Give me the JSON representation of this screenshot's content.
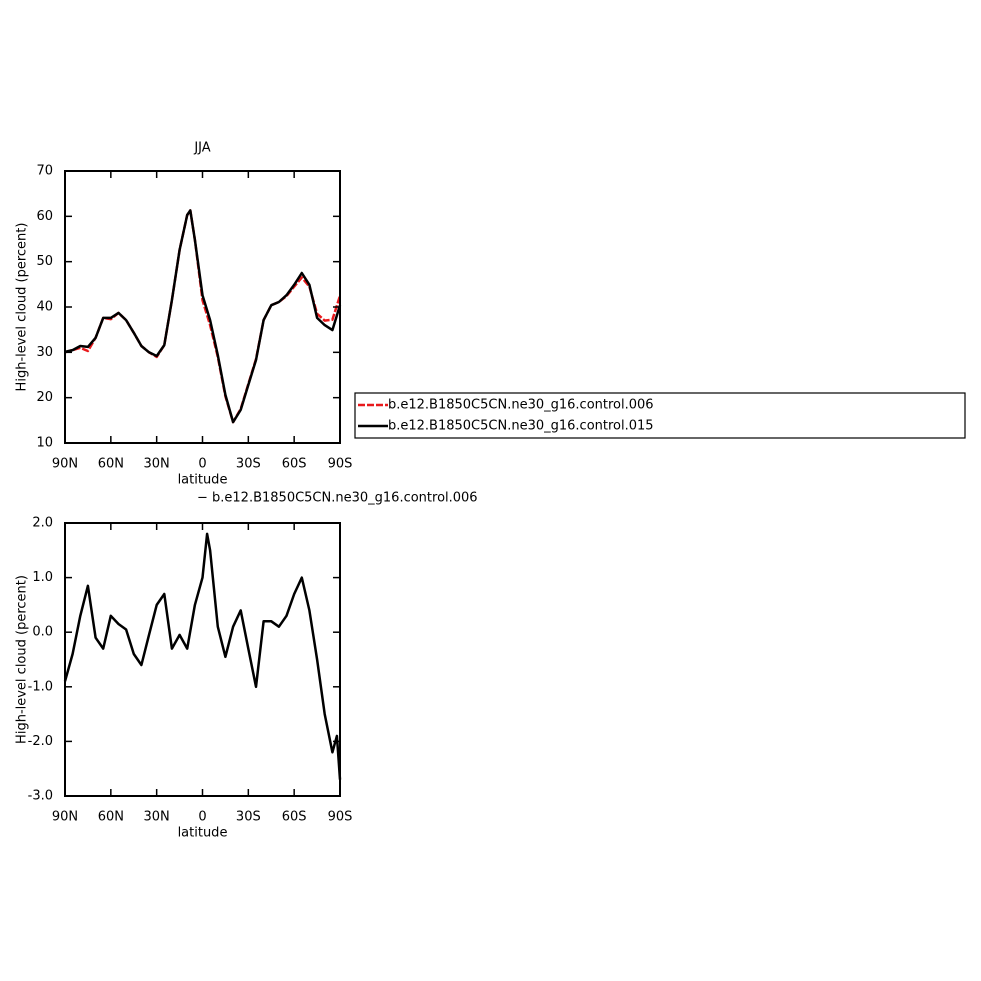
{
  "chart_data": [
    {
      "type": "line",
      "title": "JJA",
      "xlabel": "latitude",
      "ylabel": "High-level cloud  (percent)",
      "x": [
        90,
        85,
        80,
        75,
        70,
        65,
        60,
        55,
        50,
        45,
        40,
        35,
        30,
        25,
        20,
        15,
        10,
        8,
        5,
        0,
        -5,
        -10,
        -15,
        -20,
        -25,
        -30,
        -35,
        -40,
        -45,
        -50,
        -55,
        -60,
        -65,
        -70,
        -75,
        -80,
        -85,
        -90
      ],
      "series": [
        {
          "name": "b.e12.B1850C5CN.ne30_g16.control.006",
          "color": "#e8191c",
          "values": [
            30.0,
            30.5,
            31.0,
            30.3,
            33.2,
            37.6,
            37.3,
            38.7,
            37.1,
            34.3,
            31.4,
            30.0,
            29.0,
            31.6,
            41.5,
            52.6,
            60.3,
            61.3,
            54.8,
            41.5,
            36.0,
            29.0,
            20.3,
            14.6,
            17.5,
            23.0,
            28.5,
            37.1,
            40.4,
            41.1,
            42.4,
            44.5,
            46.5,
            44.5,
            38.5,
            37.0,
            37.2,
            42.5
          ]
        },
        {
          "name": "b.e12.B1850C5CN.ne30_g16.control.015",
          "color": "#000000",
          "values": [
            30.1,
            30.5,
            31.4,
            31.2,
            33.2,
            37.6,
            37.6,
            38.7,
            37.1,
            34.3,
            31.4,
            30.0,
            29.2,
            31.6,
            41.5,
            52.6,
            60.3,
            61.3,
            54.8,
            42.6,
            37.1,
            29.4,
            20.6,
            14.6,
            17.3,
            22.8,
            28.3,
            37.1,
            40.4,
            41.1,
            42.6,
            44.9,
            47.5,
            44.9,
            37.6,
            36.0,
            34.9,
            40.4
          ]
        }
      ],
      "xlim": [
        90,
        -90
      ],
      "xticks": [
        {
          "value": 90,
          "label": "90N"
        },
        {
          "value": 60,
          "label": "60N"
        },
        {
          "value": 30,
          "label": "30N"
        },
        0,
        {
          "value": -30,
          "label": "30S"
        },
        {
          "value": -60,
          "label": "60S"
        },
        {
          "value": -90,
          "label": "90S"
        }
      ],
      "ylim": [
        10,
        70
      ],
      "yticks": [
        10,
        20,
        30,
        40,
        50,
        60,
        70
      ],
      "legend": "right"
    },
    {
      "type": "line",
      "title": " − b.e12.B1850C5CN.ne30_g16.control.006",
      "xlabel": "latitude",
      "ylabel": "High-level cloud  (percent)",
      "x": [
        90,
        85,
        80,
        75,
        70,
        65,
        60,
        55,
        50,
        45,
        40,
        35,
        30,
        25,
        20,
        15,
        10,
        5,
        0,
        -3,
        -5,
        -10,
        -15,
        -20,
        -25,
        -30,
        -35,
        -40,
        -45,
        -50,
        -55,
        -60,
        -65,
        -70,
        -75,
        -80,
        -85,
        -88,
        -90
      ],
      "series": [
        {
          "color": "#000000",
          "values": [
            -0.9,
            -0.4,
            0.3,
            0.85,
            -0.1,
            -0.3,
            0.3,
            0.15,
            0.05,
            -0.4,
            -0.6,
            -0.05,
            0.5,
            0.7,
            -0.3,
            -0.05,
            -0.3,
            0.5,
            1.0,
            1.8,
            1.5,
            0.1,
            -0.45,
            0.1,
            0.4,
            -0.3,
            -1.0,
            0.2,
            0.2,
            0.1,
            0.3,
            0.7,
            1.0,
            0.4,
            -0.5,
            -1.5,
            -2.2,
            -1.9,
            -2.7
          ]
        }
      ],
      "xlim": [
        90,
        -90
      ],
      "xticks": [
        {
          "value": 90,
          "label": "90N"
        },
        {
          "value": 60,
          "label": "60N"
        },
        {
          "value": 30,
          "label": "30N"
        },
        0,
        {
          "value": -30,
          "label": "30S"
        },
        {
          "value": -60,
          "label": "60S"
        },
        {
          "value": -90,
          "label": "90S"
        }
      ],
      "ylim": [
        -3,
        2
      ],
      "yticks": [
        {
          "value": -3,
          "label": "-3.0"
        },
        {
          "value": -2,
          "label": "-2.0"
        },
        {
          "value": -1,
          "label": "-1.0"
        },
        {
          "value": 0,
          "label": "0.0"
        },
        {
          "value": 1,
          "label": "1.0"
        },
        {
          "value": 2,
          "label": "2.0"
        }
      ]
    }
  ]
}
